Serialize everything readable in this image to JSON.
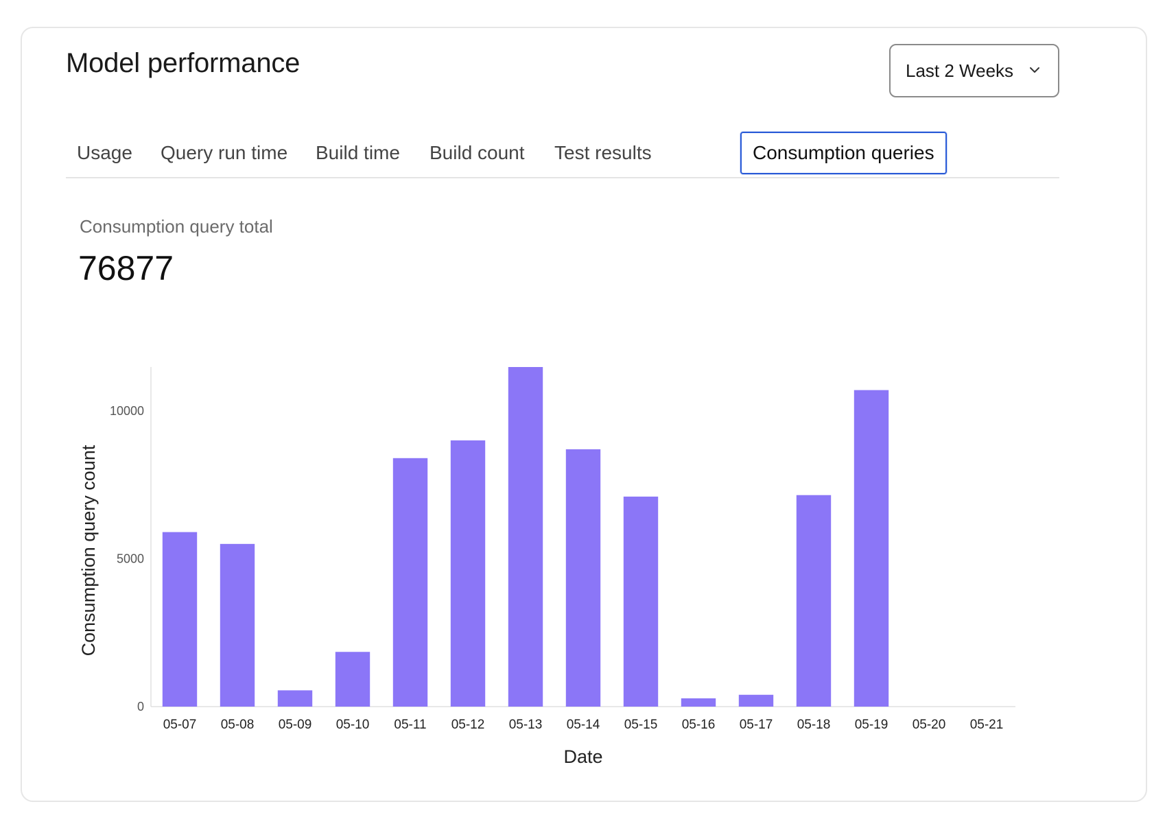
{
  "header": {
    "title": "Model performance",
    "range_select": {
      "value": "Last 2 Weeks"
    }
  },
  "tabs": [
    {
      "label": "Usage",
      "active": false
    },
    {
      "label": "Query run time",
      "active": false
    },
    {
      "label": "Build time",
      "active": false
    },
    {
      "label": "Build count",
      "active": false
    },
    {
      "label": "Test results",
      "active": false
    },
    {
      "label": "Consumption queries",
      "active": true
    }
  ],
  "metric": {
    "label": "Consumption query total",
    "value": "76877"
  },
  "colors": {
    "bar": "#8b76f7",
    "active_tab_border": "#2a5bd7"
  },
  "icons": {
    "range_select": "chevron-down-icon"
  },
  "chart_data": {
    "type": "bar",
    "categories": [
      "05-07",
      "05-08",
      "05-09",
      "05-10",
      "05-11",
      "05-12",
      "05-13",
      "05-14",
      "05-15",
      "05-16",
      "05-17",
      "05-18",
      "05-19",
      "05-20",
      "05-21"
    ],
    "values": [
      5900,
      5500,
      550,
      1850,
      8400,
      9000,
      11480,
      8700,
      7100,
      280,
      400,
      7150,
      10700,
      0,
      0
    ],
    "xlabel": "Date",
    "ylabel": "Consumption query count",
    "yticks": [
      0,
      5000,
      10000
    ],
    "ylim": [
      0,
      11480
    ],
    "grid": false,
    "legend": "none"
  }
}
